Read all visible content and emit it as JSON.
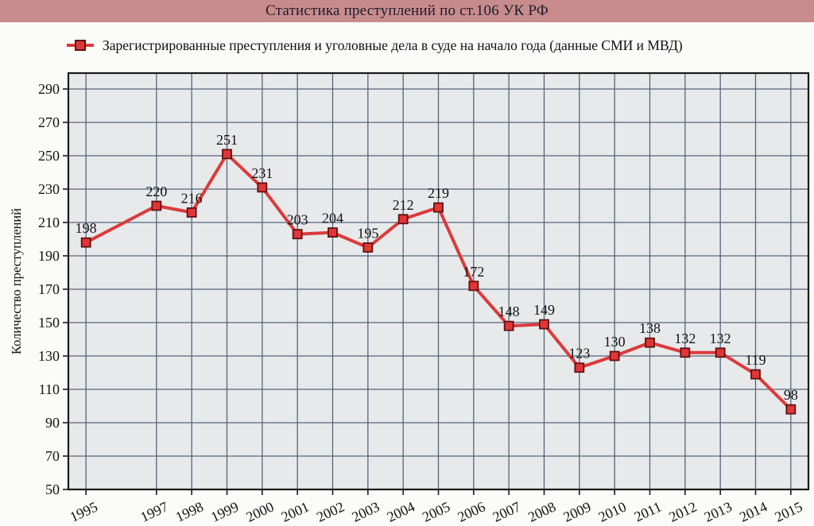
{
  "header": {
    "title": "Статистика преступлений по ст.106 УК РФ"
  },
  "legend": {
    "label": "Зарегистрированные преступления и уголовные дела в суде на начало года (данные СМИ и МВД)"
  },
  "chart_data": {
    "type": "line",
    "title": "Статистика преступлений по ст.106 УК РФ",
    "series": [
      {
        "name": "Зарегистрированные преступления и уголовные дела в суде на начало года (данные СМИ и МВД)",
        "points": [
          {
            "year": 1995,
            "value": 198
          },
          {
            "year": 1997,
            "value": 220
          },
          {
            "year": 1998,
            "value": 216
          },
          {
            "year": 1999,
            "value": 251
          },
          {
            "year": 2000,
            "value": 231
          },
          {
            "year": 2001,
            "value": 203
          },
          {
            "year": 2002,
            "value": 204
          },
          {
            "year": 2003,
            "value": 195
          },
          {
            "year": 2004,
            "value": 212
          },
          {
            "year": 2005,
            "value": 219
          },
          {
            "year": 2006,
            "value": 172
          },
          {
            "year": 2007,
            "value": 148
          },
          {
            "year": 2008,
            "value": 149
          },
          {
            "year": 2009,
            "value": 123
          },
          {
            "year": 2010,
            "value": 130
          },
          {
            "year": 2011,
            "value": 138
          },
          {
            "year": 2012,
            "value": 132
          },
          {
            "year": 2013,
            "value": 132
          },
          {
            "year": 2014,
            "value": 119
          },
          {
            "year": 2015,
            "value": 98
          }
        ]
      }
    ],
    "x_range": [
      1995,
      2015
    ],
    "missing_years": [
      1996
    ],
    "xlabel": "",
    "ylabel": "Количество преступлений",
    "ylim": [
      50,
      290
    ],
    "ytick_step": 20,
    "grid": true,
    "legend_position": "top-left",
    "marker": "square",
    "data_labels": true,
    "colors": {
      "line": "#db3b3b",
      "marker_fill": "#e23535",
      "marker_border": "#5f1212",
      "grid": "#55657d",
      "plot_bg": "#e8e9ea",
      "axis_border": "#1a1a1a",
      "titlebar_bg": "#c88b8b",
      "title_text": "#1d1d2e",
      "label_text": "#121212"
    }
  }
}
